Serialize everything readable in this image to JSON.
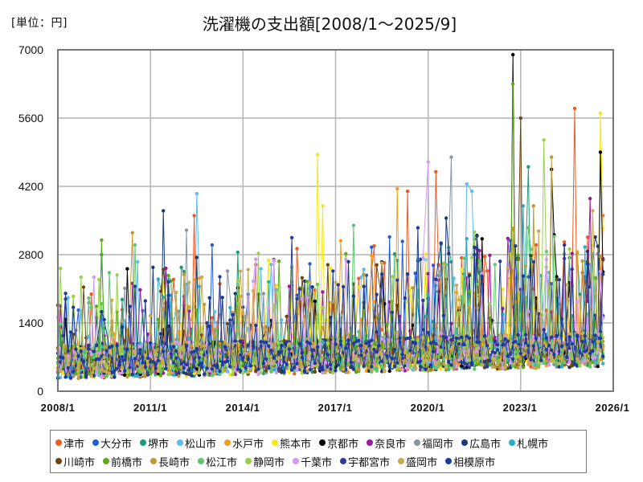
{
  "header": {
    "unit_label": "[単位：円]",
    "title": "洗濯機の支出額[2008/1～2025/9]"
  },
  "chart_data": {
    "type": "line",
    "title": "洗濯機の支出額[2008/1～2025/9]",
    "unit": "円",
    "xlabel": "",
    "ylabel": "[単位：円]",
    "x_range": [
      "2008/1",
      "2025/9"
    ],
    "xlim": [
      "2008/1",
      "2026/1"
    ],
    "ylim": [
      0,
      7000
    ],
    "y_ticks": [
      0,
      1400,
      2800,
      4200,
      5600,
      7000
    ],
    "y_tick_labels": [
      "0",
      "1400",
      "2800",
      "4200",
      "5600",
      "7000"
    ],
    "x_ticks": [
      "2008/1",
      "2011/1",
      "2014/1",
      "2017/1",
      "2020/1",
      "2023/1",
      "2026/1"
    ],
    "grid": true,
    "legend_position": "bottom",
    "markers": true,
    "series": [
      {
        "name": "津市",
        "color": "#f05a22",
        "peaks": [
          {
            "x": "2012/6",
            "y": 3600
          },
          {
            "x": "2019/5",
            "y": 4100
          },
          {
            "x": "2020/4",
            "y": 4500
          },
          {
            "x": "2024/10",
            "y": 5800
          },
          {
            "x": "2025/9",
            "y": 3600
          }
        ]
      },
      {
        "name": "大分市",
        "color": "#1f5fd6",
        "peaks": [
          {
            "x": "2013/1",
            "y": 3000
          },
          {
            "x": "2025/9",
            "y": 2700
          }
        ]
      },
      {
        "name": "堺市",
        "color": "#1a9c78",
        "peaks": [
          {
            "x": "2009/6",
            "y": 2800
          },
          {
            "x": "2013/11",
            "y": 2850
          },
          {
            "x": "2023/4",
            "y": 4600
          }
        ]
      },
      {
        "name": "松山市",
        "color": "#5bbdf0",
        "peaks": [
          {
            "x": "2012/7",
            "y": 4050
          },
          {
            "x": "2021/4",
            "y": 4250
          },
          {
            "x": "2021/6",
            "y": 4100
          }
        ]
      },
      {
        "name": "水戸市",
        "color": "#f0a020",
        "peaks": [
          {
            "x": "2019/1",
            "y": 4150
          }
        ]
      },
      {
        "name": "熊本市",
        "color": "#f5e61a",
        "peaks": [
          {
            "x": "2016/6",
            "y": 4850
          },
          {
            "x": "2016/8",
            "y": 3800
          },
          {
            "x": "2025/8",
            "y": 5700
          }
        ]
      },
      {
        "name": "京都市",
        "color": "#000000",
        "peaks": [
          {
            "x": "2022/10",
            "y": 6900
          },
          {
            "x": "2024/1",
            "y": 4550
          },
          {
            "x": "2025/8",
            "y": 4900
          }
        ]
      },
      {
        "name": "奈良市",
        "color": "#9c1a9c",
        "peaks": [
          {
            "x": "2015/1",
            "y": 2700
          },
          {
            "x": "2025/4",
            "y": 3950
          }
        ]
      },
      {
        "name": "福岡市",
        "color": "#8c96a0",
        "peaks": [
          {
            "x": "2012/3",
            "y": 3300
          },
          {
            "x": "2020/10",
            "y": 4800
          }
        ]
      },
      {
        "name": "広島市",
        "color": "#1a3a7a",
        "peaks": [
          {
            "x": "2011/6",
            "y": 3700
          },
          {
            "x": "2020/8",
            "y": 3550
          }
        ]
      },
      {
        "name": "札幌市",
        "color": "#2aaec8",
        "peaks": [
          {
            "x": "2023/2",
            "y": 3800
          }
        ]
      },
      {
        "name": "川崎市",
        "color": "#6b4513",
        "peaks": [
          {
            "x": "2023/1",
            "y": 5600
          }
        ]
      },
      {
        "name": "前橋市",
        "color": "#5aaa1a",
        "peaks": [
          {
            "x": "2009/6",
            "y": 3100
          },
          {
            "x": "2022/10",
            "y": 6300
          }
        ]
      },
      {
        "name": "長崎市",
        "color": "#c09a30",
        "peaks": [
          {
            "x": "2010/6",
            "y": 3250
          },
          {
            "x": "2023/6",
            "y": 3800
          },
          {
            "x": "2024/1",
            "y": 4800
          }
        ]
      },
      {
        "name": "松江市",
        "color": "#5ec86a",
        "peaks": [
          {
            "x": "2010/7",
            "y": 3000
          },
          {
            "x": "2017/8",
            "y": 3400
          }
        ]
      },
      {
        "name": "静岡市",
        "color": "#9ad04a",
        "peaks": [
          {
            "x": "2023/10",
            "y": 5150
          }
        ]
      },
      {
        "name": "千葉市",
        "color": "#d49af0",
        "peaks": [
          {
            "x": "2020/1",
            "y": 4700
          }
        ]
      },
      {
        "name": "宇都宮市",
        "color": "#2a3a9a",
        "peaks": [
          {
            "x": "2015/8",
            "y": 3150
          }
        ]
      },
      {
        "name": "盛岡市",
        "color": "#c8aa50",
        "peaks": [
          {
            "x": "2025/5",
            "y": 3700
          }
        ]
      },
      {
        "name": "相模原市",
        "color": "#1a3aa0",
        "peaks": [
          {
            "x": "2019/9",
            "y": 3350
          }
        ]
      }
    ]
  },
  "legend": {
    "row1": [
      "津市",
      "大分市",
      "堺市",
      "松山市",
      "水戸市",
      "熊本市",
      "京都市",
      "奈良市",
      "福岡市",
      "広島市",
      "札幌市"
    ],
    "row2": [
      "川崎市",
      "前橋市",
      "長崎市",
      "松江市",
      "静岡市",
      "千葉市",
      "宇都宮市",
      "盛岡市",
      "相模原市"
    ]
  }
}
